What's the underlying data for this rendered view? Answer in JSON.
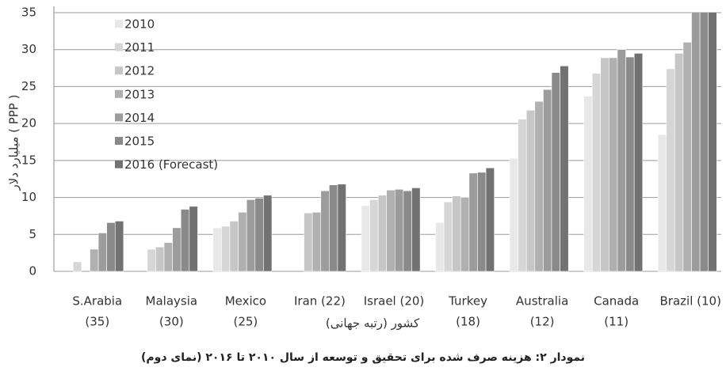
{
  "chart_data": {
    "type": "bar",
    "ylabel": "میلیارد دلار ( PPP )",
    "xlabel": "کشور (رتبه جهانی)",
    "caption": "نمودار ۲: هزینه صرف شده برای تحقیق و توسعه از سال ۲۰۱۰ تا ۲۰۱۶ (نمای دوم)",
    "categories": [
      [
        "S.Arabia",
        "(35)"
      ],
      [
        "Malaysia",
        "(30)"
      ],
      [
        "Mexico",
        "(25)"
      ],
      [
        "Iran (22)"
      ],
      [
        "Israel (20)"
      ],
      [
        "Turkey",
        "(18)"
      ],
      [
        "Australia",
        "(12)"
      ],
      [
        "Canada",
        "(11)"
      ],
      [
        "Brazil (10)"
      ]
    ],
    "series": [
      {
        "name": "2010",
        "color": "#e8e8e8",
        "values": [
          null,
          null,
          5.9,
          null,
          8.9,
          6.6,
          15.3,
          23.7,
          18.5
        ]
      },
      {
        "name": "2011",
        "color": "#d6d6d6",
        "values": [
          1.3,
          3.0,
          6.1,
          null,
          9.7,
          9.4,
          20.6,
          26.8,
          27.4
        ]
      },
      {
        "name": "2012",
        "color": "#c6c6c6",
        "values": [
          null,
          3.3,
          6.8,
          7.9,
          10.3,
          10.2,
          21.8,
          28.9,
          29.5
        ]
      },
      {
        "name": "2013",
        "color": "#b0b0b0",
        "values": [
          3.0,
          3.9,
          8.0,
          8.0,
          11.0,
          10.0,
          23.0,
          28.9,
          31.0
        ]
      },
      {
        "name": "2014",
        "color": "#9c9c9c",
        "values": [
          5.2,
          5.9,
          9.7,
          10.9,
          11.1,
          13.3,
          24.6,
          30.0,
          36
        ]
      },
      {
        "name": "2015",
        "color": "#8a8a8a",
        "values": [
          6.6,
          8.4,
          9.9,
          11.7,
          10.9,
          13.4,
          26.9,
          29.0,
          36
        ]
      },
      {
        "name": "2016 (Forecast)",
        "color": "#727272",
        "values": [
          6.8,
          8.8,
          10.3,
          11.8,
          11.3,
          14.0,
          27.8,
          29.5,
          36
        ]
      }
    ],
    "ylim": [
      0,
      35
    ],
    "yticks": [
      0,
      5,
      10,
      15,
      20,
      25,
      30,
      35
    ],
    "grid": true
  }
}
